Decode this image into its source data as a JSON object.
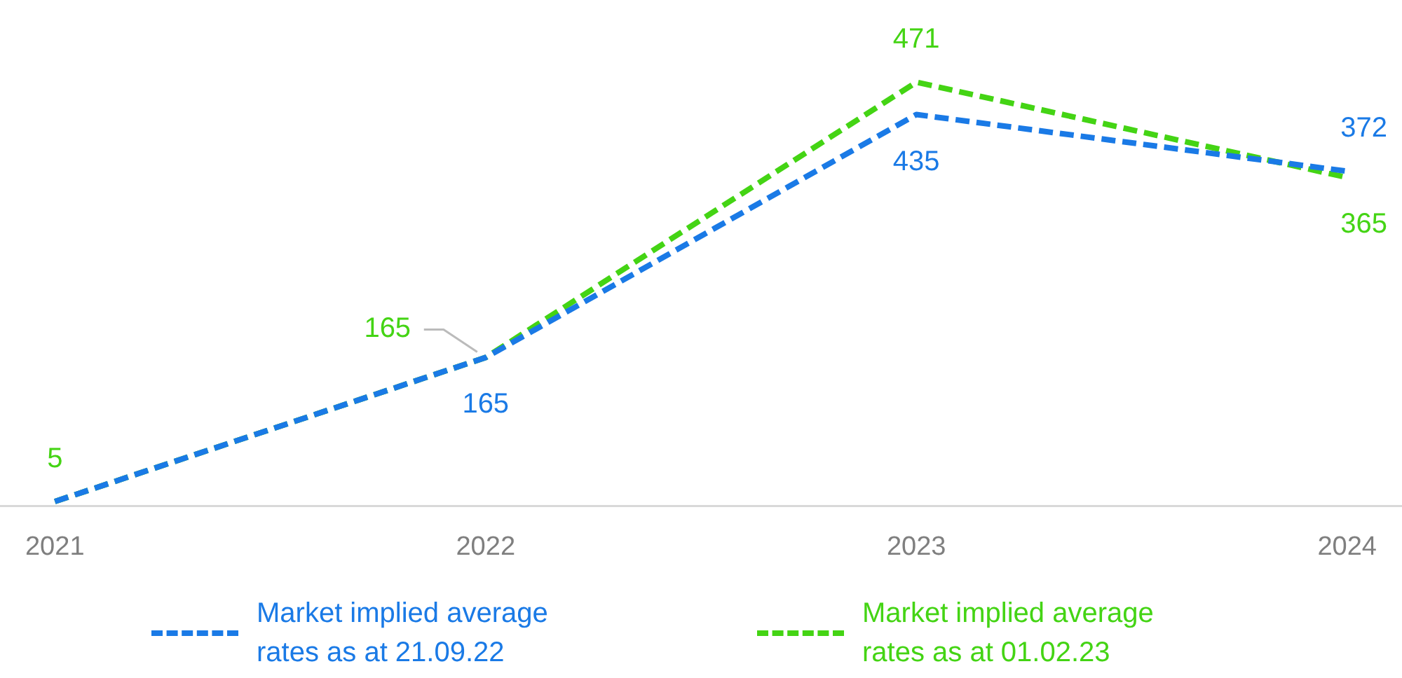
{
  "chart_data": {
    "type": "line",
    "categories": [
      "2021",
      "2022",
      "2023",
      "2024"
    ],
    "series": [
      {
        "name": "Market implied average rates as at 21.09.22",
        "color": "#1a7ae6",
        "values": [
          5,
          165,
          435,
          372
        ],
        "value_labels": [
          null,
          "165",
          "435",
          "372"
        ]
      },
      {
        "name": "Market implied average rates as at 01.02.23",
        "color": "#44d414",
        "values": [
          5,
          165,
          471,
          365
        ],
        "value_labels": [
          "5",
          "165",
          "471",
          "365"
        ]
      }
    ],
    "legend": "bottom",
    "line_style": "dashed",
    "marker": "none",
    "grid": false
  }
}
